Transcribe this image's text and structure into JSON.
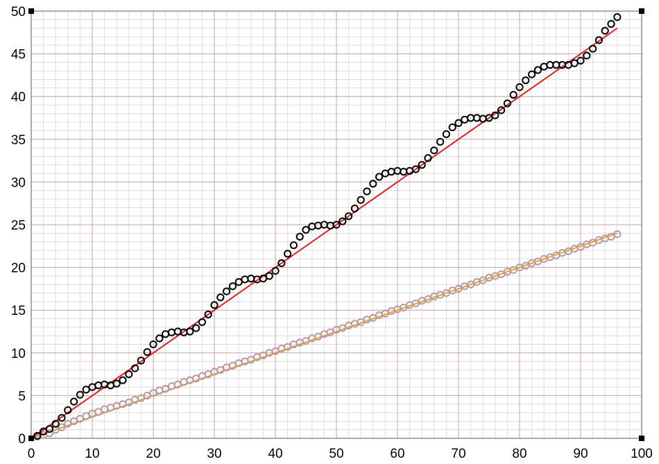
{
  "chart_data": {
    "type": "scatter",
    "title": "",
    "xlabel": "",
    "ylabel": "",
    "xlim": [
      0,
      100
    ],
    "ylim": [
      0,
      50
    ],
    "x_ticks": [
      "0",
      "10",
      "20",
      "30",
      "40",
      "50",
      "60",
      "70",
      "80",
      "90",
      "100"
    ],
    "y_ticks": [
      "0",
      "5",
      "10",
      "15",
      "20",
      "25",
      "30",
      "35",
      "40",
      "45",
      "50"
    ],
    "grid": true,
    "series": [
      {
        "kind": "markers",
        "color": "#000000",
        "x": [
          1,
          2,
          3,
          4,
          5,
          6,
          7,
          8,
          9,
          10,
          11,
          12,
          13,
          14,
          15,
          16,
          17,
          18,
          19,
          20,
          21,
          22,
          23,
          24,
          25,
          26,
          27,
          28,
          29,
          30,
          31,
          32,
          33,
          34,
          35,
          36,
          37,
          38,
          39,
          40,
          41,
          42,
          43,
          44,
          45,
          46,
          47,
          48,
          49,
          50,
          51,
          52,
          53,
          54,
          55,
          56,
          57,
          58,
          59,
          60,
          61,
          62,
          63,
          64,
          65,
          66,
          67,
          68,
          69,
          70,
          71,
          72,
          73,
          74,
          75,
          76,
          77,
          78,
          79,
          80,
          81,
          82,
          83,
          84,
          85,
          86,
          87,
          88,
          89,
          90,
          91,
          92,
          93,
          94,
          95,
          96
        ],
        "y": [
          0.3,
          0.8,
          1.1,
          1.7,
          2.4,
          3.3,
          4.3,
          5.1,
          5.7,
          6.0,
          6.2,
          6.3,
          6.2,
          6.4,
          6.8,
          7.5,
          8.2,
          9.1,
          10.1,
          11.0,
          11.7,
          12.2,
          12.4,
          12.5,
          12.4,
          12.5,
          12.9,
          13.6,
          14.5,
          15.6,
          16.5,
          17.2,
          17.8,
          18.3,
          18.6,
          18.7,
          18.6,
          18.7,
          19.0,
          19.6,
          20.5,
          21.6,
          22.6,
          23.6,
          24.4,
          24.8,
          24.9,
          25.0,
          24.9,
          25.0,
          25.4,
          26.0,
          26.9,
          27.9,
          28.9,
          29.8,
          30.6,
          31.0,
          31.2,
          31.3,
          31.2,
          31.3,
          31.5,
          32.0,
          32.8,
          33.7,
          34.7,
          35.6,
          36.4,
          36.9,
          37.3,
          37.5,
          37.5,
          37.4,
          37.5,
          37.8,
          38.4,
          39.2,
          40.2,
          41.1,
          41.9,
          42.6,
          43.1,
          43.5,
          43.7,
          43.7,
          43.7,
          43.7,
          43.9,
          44.2,
          44.8,
          45.6,
          46.6,
          47.7,
          48.5,
          49.3
        ]
      },
      {
        "kind": "line",
        "color": "#e02020",
        "x": [
          0,
          96
        ],
        "y": [
          0,
          48
        ]
      },
      {
        "kind": "markers",
        "color": "#b89aa0",
        "x": [
          1,
          2,
          3,
          4,
          5,
          6,
          7,
          8,
          9,
          10,
          11,
          12,
          13,
          14,
          15,
          16,
          17,
          18,
          19,
          20,
          21,
          22,
          23,
          24,
          25,
          26,
          27,
          28,
          29,
          30,
          31,
          32,
          33,
          34,
          35,
          36,
          37,
          38,
          39,
          40,
          41,
          42,
          43,
          44,
          45,
          46,
          47,
          48,
          49,
          50,
          51,
          52,
          53,
          54,
          55,
          56,
          57,
          58,
          59,
          60,
          61,
          62,
          63,
          64,
          65,
          66,
          67,
          68,
          69,
          70,
          71,
          72,
          73,
          74,
          75,
          76,
          77,
          78,
          79,
          80,
          81,
          82,
          83,
          84,
          85,
          86,
          87,
          88,
          89,
          90,
          91,
          92,
          93,
          94,
          95,
          96
        ],
        "y": [
          0.2,
          0.4,
          0.6,
          1.0,
          1.3,
          1.7,
          2.0,
          2.3,
          2.6,
          2.9,
          3.1,
          3.4,
          3.6,
          3.8,
          4.0,
          4.2,
          4.5,
          4.7,
          5.0,
          5.3,
          5.6,
          5.8,
          6.1,
          6.3,
          6.6,
          6.8,
          7.0,
          7.3,
          7.5,
          7.8,
          8.0,
          8.3,
          8.5,
          8.8,
          9.0,
          9.2,
          9.5,
          9.7,
          10.0,
          10.2,
          10.5,
          10.7,
          11.0,
          11.2,
          11.4,
          11.7,
          11.9,
          12.2,
          12.4,
          12.7,
          12.9,
          13.2,
          13.4,
          13.6,
          13.9,
          14.1,
          14.4,
          14.6,
          14.9,
          15.1,
          15.3,
          15.6,
          15.8,
          16.1,
          16.3,
          16.6,
          16.8,
          17.0,
          17.3,
          17.5,
          17.8,
          18.0,
          18.3,
          18.5,
          18.8,
          19.0,
          19.2,
          19.5,
          19.7,
          20.0,
          20.2,
          20.5,
          20.7,
          21.0,
          21.2,
          21.4,
          21.7,
          21.9,
          22.2,
          22.4,
          22.7,
          22.9,
          23.2,
          23.4,
          23.6,
          23.9
        ]
      },
      {
        "kind": "line",
        "color": "#e8a020",
        "x": [
          0,
          96
        ],
        "y": [
          0,
          24
        ]
      }
    ]
  }
}
